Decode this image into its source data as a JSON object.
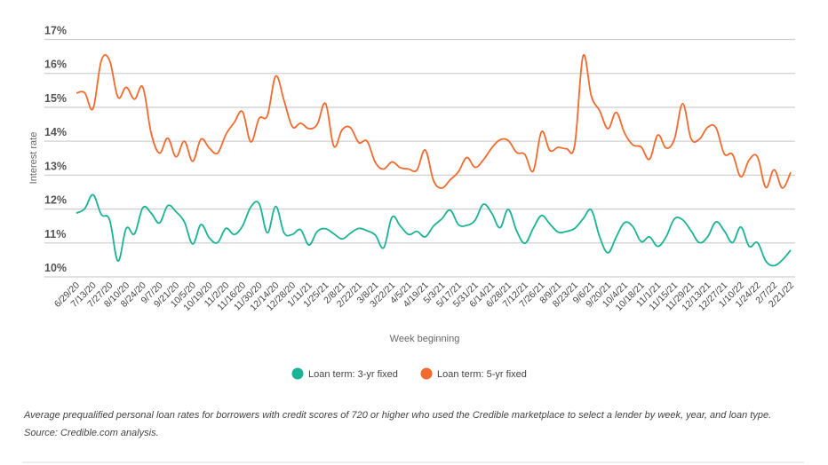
{
  "chart_data": {
    "type": "line",
    "title": "",
    "xlabel": "Week beginning",
    "ylabel": "Interest rate",
    "ylim": [
      10,
      17
    ],
    "yticks": [
      "10%",
      "11%",
      "12%",
      "13%",
      "14%",
      "15%",
      "16%",
      "17%"
    ],
    "grid": true,
    "legend_position": "bottom",
    "x": [
      "6/29/20",
      "7/6/20",
      "7/13/20",
      "7/20/20",
      "7/27/20",
      "8/3/20",
      "8/10/20",
      "8/17/20",
      "8/24/20",
      "8/31/20",
      "9/7/20",
      "9/14/20",
      "9/21/20",
      "9/28/20",
      "10/5/20",
      "10/12/20",
      "10/19/20",
      "10/26/20",
      "11/2/20",
      "11/9/20",
      "11/16/20",
      "11/23/20",
      "11/30/20",
      "12/7/20",
      "12/14/20",
      "12/21/20",
      "12/28/20",
      "1/4/21",
      "1/11/21",
      "1/18/21",
      "1/25/21",
      "2/1/21",
      "2/8/21",
      "2/15/21",
      "2/22/21",
      "3/1/21",
      "3/8/21",
      "3/15/21",
      "3/22/21",
      "3/29/21",
      "4/5/21",
      "4/12/21",
      "4/19/21",
      "4/26/21",
      "5/3/21",
      "5/10/21",
      "5/17/21",
      "5/24/21",
      "5/31/21",
      "6/7/21",
      "6/14/21",
      "6/21/21",
      "6/28/21",
      "7/5/21",
      "7/12/21",
      "7/19/21",
      "7/26/21",
      "8/2/21",
      "8/9/21",
      "8/16/21",
      "8/23/21",
      "8/30/21",
      "9/6/21",
      "9/13/21",
      "9/20/21",
      "9/27/21",
      "10/4/21",
      "10/11/21",
      "10/18/21",
      "10/25/21",
      "11/1/21",
      "11/8/21",
      "11/15/21",
      "11/22/21",
      "11/29/21",
      "12/6/21",
      "12/13/21",
      "12/20/21",
      "12/27/21",
      "1/3/22",
      "1/10/22",
      "1/17/22",
      "1/24/22",
      "1/31/22",
      "2/7/22",
      "2/14/22",
      "2/21/22"
    ],
    "series": [
      {
        "name": "Loan term: 3-yr fixed",
        "color": "#1ab394",
        "values": [
          11.88,
          12.01,
          12.42,
          11.84,
          11.68,
          10.47,
          11.43,
          11.27,
          12.04,
          11.88,
          11.59,
          12.1,
          11.92,
          11.62,
          10.97,
          11.54,
          11.15,
          11.01,
          11.43,
          11.25,
          11.5,
          12.06,
          12.16,
          11.3,
          12.08,
          11.3,
          11.25,
          11.39,
          10.94,
          11.34,
          11.42,
          11.27,
          11.12,
          11.29,
          11.43,
          11.36,
          11.23,
          10.86,
          11.76,
          11.5,
          11.25,
          11.34,
          11.18,
          11.5,
          11.71,
          11.97,
          11.54,
          11.52,
          11.67,
          12.14,
          11.88,
          11.45,
          11.99,
          11.36,
          10.99,
          11.43,
          11.81,
          11.56,
          11.32,
          11.34,
          11.43,
          11.71,
          11.97,
          11.18,
          10.71,
          11.18,
          11.6,
          11.48,
          11.04,
          11.18,
          10.9,
          11.18,
          11.71,
          11.68,
          11.36,
          11.01,
          11.18,
          11.62,
          11.36,
          11.01,
          11.47,
          10.9,
          11.01,
          10.47,
          10.33,
          10.5,
          10.79
        ]
      },
      {
        "name": "Loan term: 5-yr fixed",
        "color": "#f26a2e",
        "values": [
          15.42,
          15.43,
          14.96,
          16.38,
          16.38,
          15.3,
          15.59,
          15.24,
          15.59,
          14.24,
          13.65,
          14.09,
          13.54,
          14.0,
          13.41,
          14.06,
          13.8,
          13.65,
          14.2,
          14.55,
          14.87,
          13.98,
          14.67,
          14.76,
          15.92,
          15.2,
          14.43,
          14.53,
          14.37,
          14.5,
          15.11,
          13.85,
          14.34,
          14.4,
          13.96,
          14.0,
          13.37,
          13.18,
          13.39,
          13.22,
          13.18,
          13.15,
          13.74,
          12.84,
          12.62,
          12.86,
          13.1,
          13.52,
          13.23,
          13.45,
          13.8,
          14.04,
          14.02,
          13.67,
          13.61,
          13.12,
          14.28,
          13.73,
          13.82,
          13.78,
          13.89,
          16.51,
          15.33,
          14.9,
          14.37,
          14.85,
          14.24,
          13.89,
          13.83,
          13.47,
          14.18,
          13.8,
          14.06,
          15.11,
          14.08,
          14.06,
          14.41,
          14.4,
          13.63,
          13.61,
          12.95,
          13.45,
          13.54,
          12.64,
          13.16,
          12.62,
          13.08
        ]
      }
    ]
  },
  "caption": "Average prequalified personal loan rates for borrowers with credit scores of 720 or higher who used the Credible marketplace to select a lender by week, year, and loan type. Source: Credible.com analysis."
}
